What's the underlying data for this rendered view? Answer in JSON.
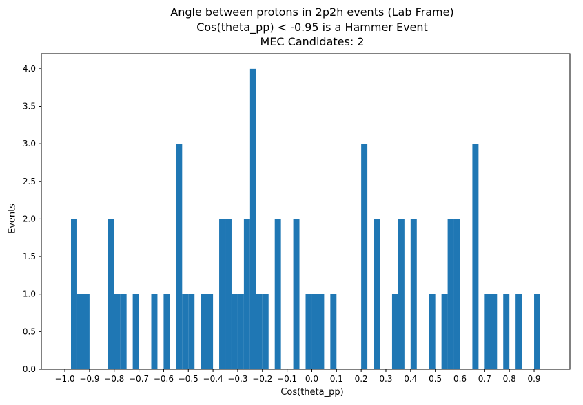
{
  "chart_data": {
    "type": "bar",
    "title_lines": [
      "Angle between protons in 2p2h events (Lab Frame)",
      "Cos(theta_pp) < -0.95 is a Hammer Event",
      "MEC Candidates: 2"
    ],
    "xlabel": "Cos(theta_pp)",
    "ylabel": "Events",
    "xlim": [
      -1.095,
      1.045
    ],
    "ylim": [
      0,
      4.2
    ],
    "xticks": [
      "−1.0",
      "−0.9",
      "−0.8",
      "−0.7",
      "−0.6",
      "−0.5",
      "−0.4",
      "−0.3",
      "−0.2",
      "−0.1",
      "0.0",
      "0.1",
      "0.2",
      "0.3",
      "0.4",
      "0.5",
      "0.6",
      "0.7",
      "0.8",
      "0.9"
    ],
    "xtick_values": [
      -1.0,
      -0.9,
      -0.8,
      -0.7,
      -0.6,
      -0.5,
      -0.4,
      -0.3,
      -0.2,
      -0.1,
      0.0,
      0.1,
      0.2,
      0.3,
      0.4,
      0.5,
      0.6,
      0.7,
      0.8,
      0.9
    ],
    "yticks": [
      "0.0",
      "0.5",
      "1.0",
      "1.5",
      "2.0",
      "2.5",
      "3.0",
      "3.5",
      "4.0"
    ],
    "ytick_values": [
      0.0,
      0.5,
      1.0,
      1.5,
      2.0,
      2.5,
      3.0,
      3.5,
      4.0
    ],
    "bin_width": 0.025,
    "bins": [
      {
        "x": -0.975,
        "value": 2
      },
      {
        "x": -0.95,
        "value": 1
      },
      {
        "x": -0.925,
        "value": 1
      },
      {
        "x": -0.825,
        "value": 2
      },
      {
        "x": -0.8,
        "value": 1
      },
      {
        "x": -0.775,
        "value": 1
      },
      {
        "x": -0.725,
        "value": 1
      },
      {
        "x": -0.65,
        "value": 1
      },
      {
        "x": -0.6,
        "value": 1
      },
      {
        "x": -0.55,
        "value": 3
      },
      {
        "x": -0.525,
        "value": 1
      },
      {
        "x": -0.5,
        "value": 1
      },
      {
        "x": -0.45,
        "value": 1
      },
      {
        "x": -0.425,
        "value": 1
      },
      {
        "x": -0.375,
        "value": 2
      },
      {
        "x": -0.35,
        "value": 2
      },
      {
        "x": -0.325,
        "value": 1
      },
      {
        "x": -0.3,
        "value": 1
      },
      {
        "x": -0.275,
        "value": 2
      },
      {
        "x": -0.25,
        "value": 4
      },
      {
        "x": -0.225,
        "value": 1
      },
      {
        "x": -0.2,
        "value": 1
      },
      {
        "x": -0.15,
        "value": 2
      },
      {
        "x": -0.075,
        "value": 2
      },
      {
        "x": -0.025,
        "value": 1
      },
      {
        "x": 0.0,
        "value": 1
      },
      {
        "x": 0.025,
        "value": 1
      },
      {
        "x": 0.075,
        "value": 1
      },
      {
        "x": 0.2,
        "value": 3
      },
      {
        "x": 0.25,
        "value": 2
      },
      {
        "x": 0.325,
        "value": 1
      },
      {
        "x": 0.35,
        "value": 2
      },
      {
        "x": 0.4,
        "value": 2
      },
      {
        "x": 0.475,
        "value": 1
      },
      {
        "x": 0.525,
        "value": 1
      },
      {
        "x": 0.55,
        "value": 2
      },
      {
        "x": 0.575,
        "value": 2
      },
      {
        "x": 0.65,
        "value": 3
      },
      {
        "x": 0.7,
        "value": 1
      },
      {
        "x": 0.725,
        "value": 1
      },
      {
        "x": 0.775,
        "value": 1
      },
      {
        "x": 0.825,
        "value": 1
      },
      {
        "x": 0.9,
        "value": 1
      }
    ],
    "bar_color": "#1f77b4",
    "grid": false,
    "legend": "none"
  }
}
